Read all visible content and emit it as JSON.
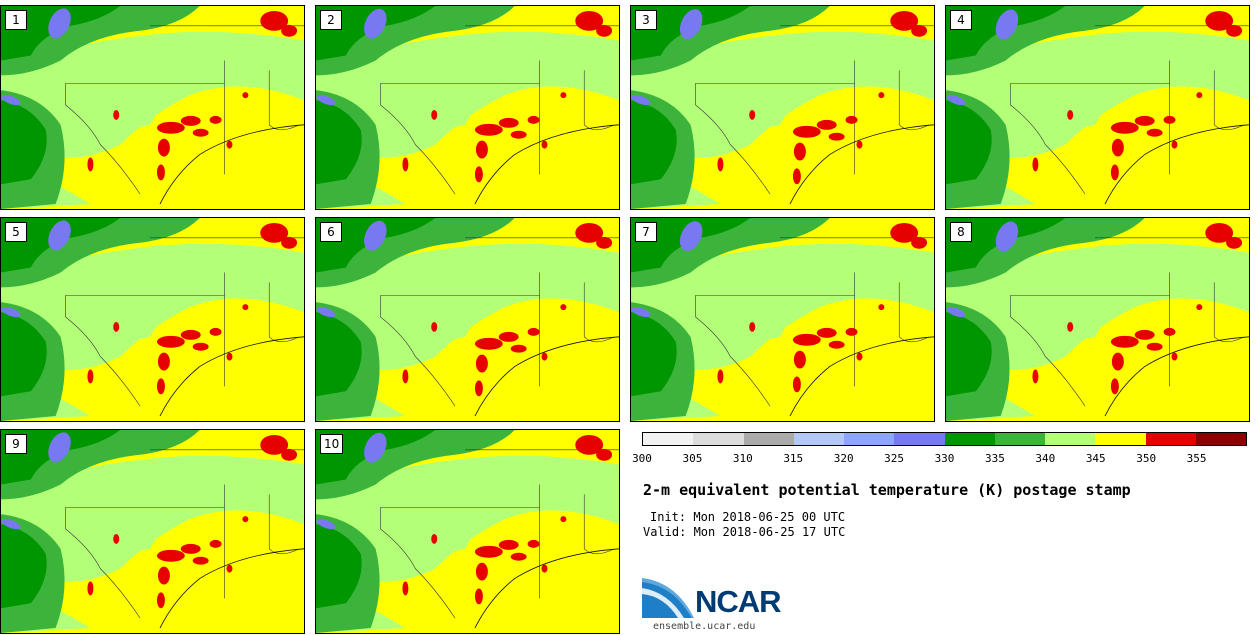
{
  "panels": [
    {
      "label": "1"
    },
    {
      "label": "2"
    },
    {
      "label": "3"
    },
    {
      "label": "4"
    },
    {
      "label": "5"
    },
    {
      "label": "6"
    },
    {
      "label": "7"
    },
    {
      "label": "8"
    },
    {
      "label": "9"
    },
    {
      "label": "10"
    }
  ],
  "colorbar": {
    "colors": [
      "#f2f2f2",
      "#dcdcdc",
      "#aaaaaa",
      "#b4c8f5",
      "#8ca5ff",
      "#7878f0",
      "#009600",
      "#3cb43c",
      "#b4ff78",
      "#ffff00",
      "#e60000",
      "#8c0000"
    ],
    "ticks": [
      "300",
      "305",
      "310",
      "315",
      "320",
      "325",
      "330",
      "335",
      "340",
      "345",
      "350",
      "355"
    ]
  },
  "map_colors": {
    "yellow": "#ffff00",
    "light_green": "#b4ff78",
    "medium_green": "#3cb43c",
    "dark_green": "#009600",
    "blue": "#7878f0",
    "red": "#e60000"
  },
  "title": "2-m equivalent potential temperature (K) postage stamp",
  "init": "Init: Mon 2018-06-25 00 UTC",
  "valid": "Valid: Mon 2018-06-25 17 UTC",
  "logo": {
    "text": "NCAR",
    "color": "#003b73"
  },
  "site": "ensemble.ucar.edu"
}
